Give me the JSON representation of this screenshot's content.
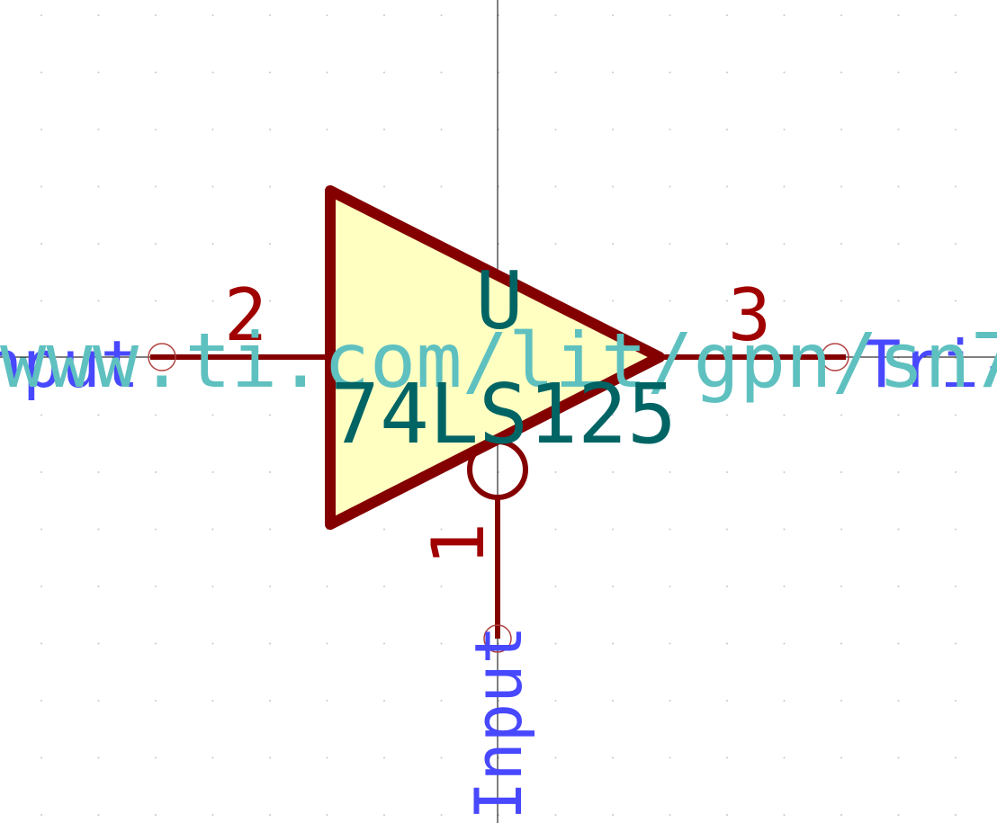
{
  "symbol": {
    "reference": "U",
    "value": "74LS125",
    "datasheet": "www.ti.com/lit/gpn/sn7",
    "pins": [
      {
        "number": "2",
        "name": "Input"
      },
      {
        "number": "3",
        "name": "Tri-"
      },
      {
        "number": "1",
        "name": "Input"
      }
    ]
  }
}
